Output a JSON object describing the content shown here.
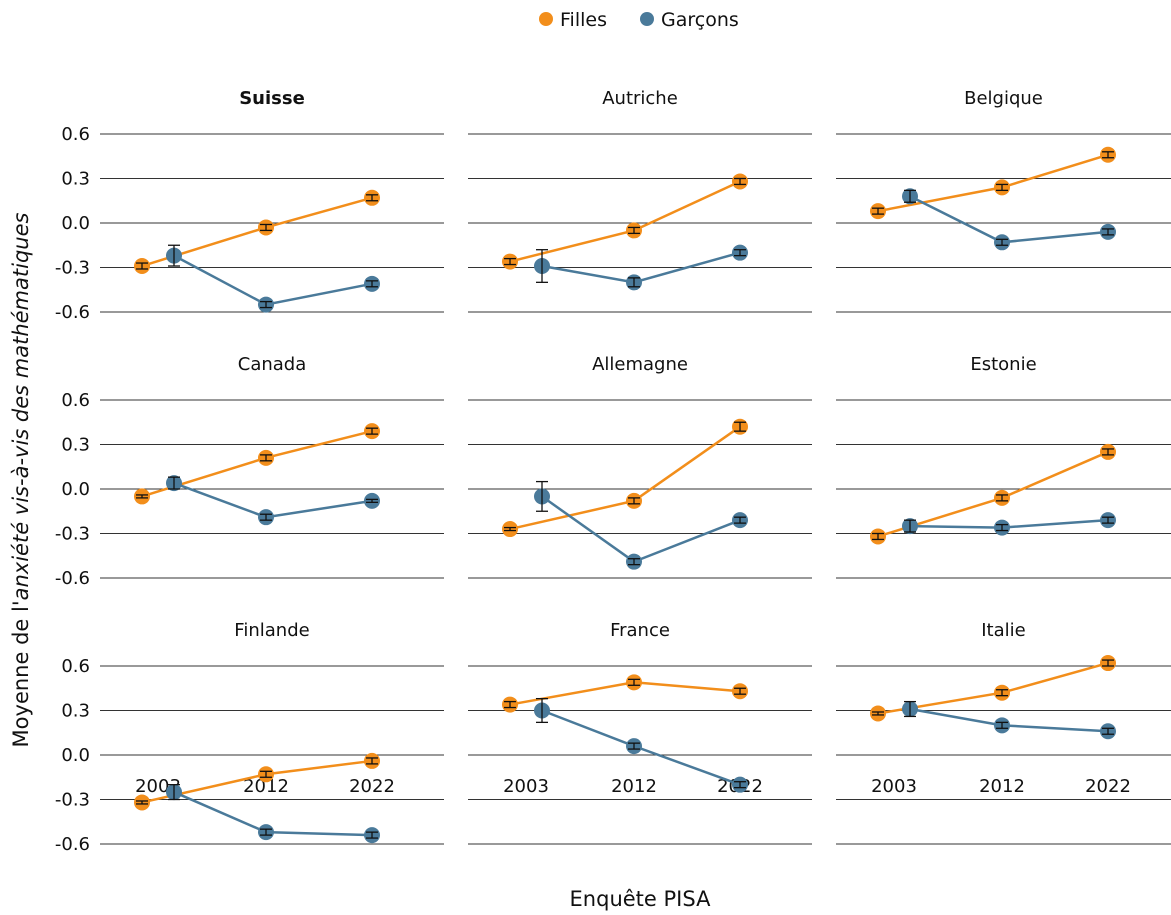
{
  "chart_data": {
    "type": "line",
    "xlabel": "Enquête PISA",
    "ylabel_prefix": "Moyenne de l'",
    "ylabel_italic": "anxiété vis-à-vis des mathématiques",
    "x_categories": [
      "2003",
      "2012",
      "2022"
    ],
    "y_ticks": [
      "0.6",
      "0.3",
      "0.0",
      "-0.3",
      "-0.6"
    ],
    "ylim": [
      -0.6,
      0.6
    ],
    "legend_position": "top-center",
    "error_bars": true,
    "series": [
      {
        "name": "Filles",
        "color": "#F28E1B"
      },
      {
        "name": "Garçons",
        "color": "#4A7A9A"
      }
    ],
    "panels": [
      {
        "title": "Suisse",
        "bold": true,
        "filles": {
          "y": [
            -0.29,
            -0.03,
            0.17
          ],
          "err": [
            0.02,
            0.02,
            0.02
          ]
        },
        "garcons": {
          "y": [
            -0.22,
            -0.55,
            -0.41
          ],
          "err": [
            0.07,
            0.02,
            0.02
          ]
        }
      },
      {
        "title": "Autriche",
        "bold": false,
        "filles": {
          "y": [
            -0.26,
            -0.05,
            0.28
          ],
          "err": [
            0.02,
            0.02,
            0.02
          ]
        },
        "garcons": {
          "y": [
            -0.29,
            -0.4,
            -0.2
          ],
          "err": [
            0.11,
            0.03,
            0.02
          ]
        }
      },
      {
        "title": "Belgique",
        "bold": false,
        "filles": {
          "y": [
            0.08,
            0.24,
            0.46
          ],
          "err": [
            0.02,
            0.02,
            0.02
          ]
        },
        "garcons": {
          "y": [
            0.18,
            -0.13,
            -0.06
          ],
          "err": [
            0.04,
            0.02,
            0.02
          ]
        }
      },
      {
        "title": "Canada",
        "bold": false,
        "filles": {
          "y": [
            -0.05,
            0.21,
            0.39
          ],
          "err": [
            0.01,
            0.02,
            0.02
          ]
        },
        "garcons": {
          "y": [
            0.04,
            -0.19,
            -0.08
          ],
          "err": [
            0.04,
            0.02,
            0.01
          ]
        }
      },
      {
        "title": "Allemagne",
        "bold": false,
        "filles": {
          "y": [
            -0.27,
            -0.08,
            0.42
          ],
          "err": [
            0.01,
            0.02,
            0.03
          ]
        },
        "garcons": {
          "y": [
            -0.05,
            -0.49,
            -0.21
          ],
          "err": [
            0.1,
            0.02,
            0.02
          ]
        }
      },
      {
        "title": "Estonie",
        "bold": false,
        "filles": {
          "y": [
            -0.32,
            -0.06,
            0.25
          ],
          "err": [
            0.02,
            0.02,
            0.02
          ]
        },
        "garcons": {
          "y": [
            -0.25,
            -0.26,
            -0.21
          ],
          "err": [
            0.04,
            0.02,
            0.02
          ]
        }
      },
      {
        "title": "Finlande",
        "bold": false,
        "filles": {
          "y": [
            -0.32,
            -0.13,
            -0.04
          ],
          "err": [
            0.01,
            0.02,
            0.02
          ]
        },
        "garcons": {
          "y": [
            -0.25,
            -0.52,
            -0.54
          ],
          "err": [
            0.05,
            0.02,
            0.02
          ]
        }
      },
      {
        "title": "France",
        "bold": false,
        "filles": {
          "y": [
            0.34,
            0.49,
            0.43
          ],
          "err": [
            0.02,
            0.02,
            0.02
          ]
        },
        "garcons": {
          "y": [
            0.3,
            0.06,
            -0.2
          ],
          "err": [
            0.08,
            0.02,
            0.02
          ]
        }
      },
      {
        "title": "Italie",
        "bold": false,
        "filles": {
          "y": [
            0.28,
            0.42,
            0.62
          ],
          "err": [
            0.01,
            0.02,
            0.02
          ]
        },
        "garcons": {
          "y": [
            0.31,
            0.2,
            0.16
          ],
          "err": [
            0.05,
            0.02,
            0.02
          ]
        }
      }
    ]
  }
}
